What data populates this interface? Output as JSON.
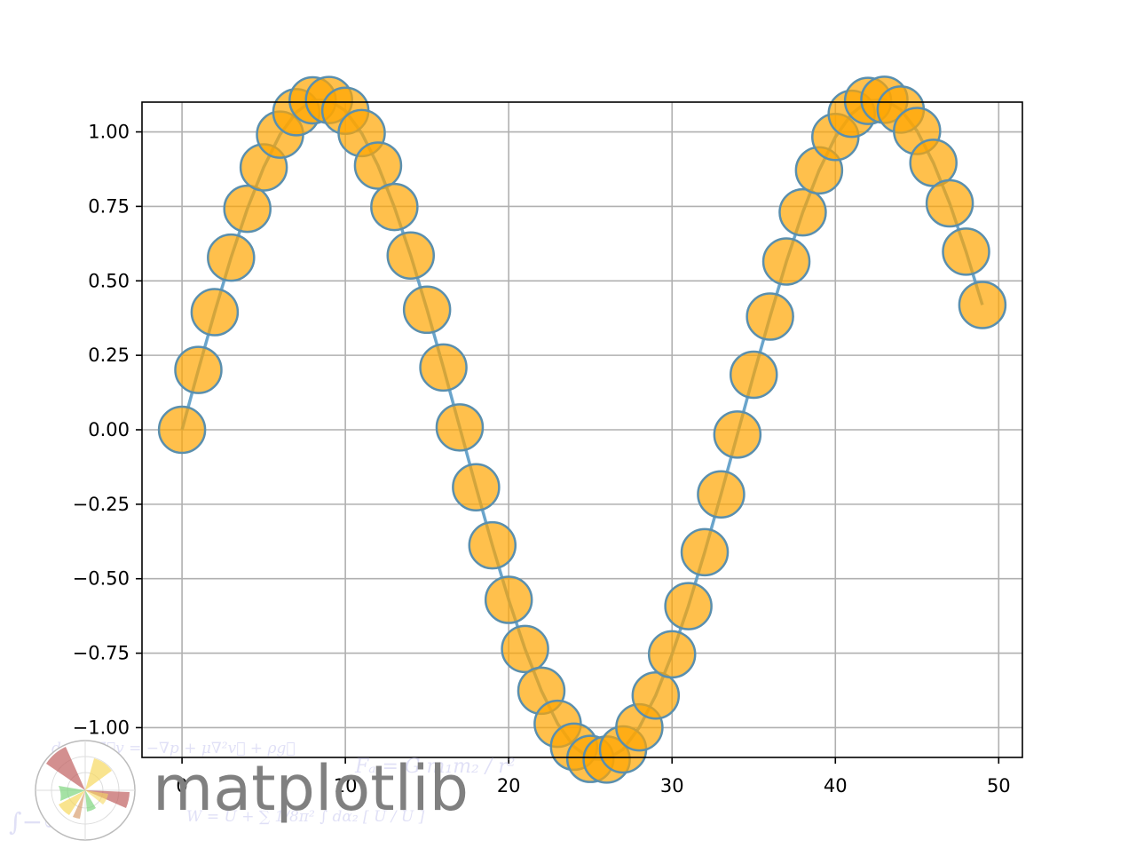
{
  "chart_data": {
    "type": "line",
    "title": "",
    "xlabel": "",
    "ylabel": "",
    "xlim": [
      -2.45,
      51.45
    ],
    "ylim": [
      -1.1,
      1.1
    ],
    "grid": true,
    "x_ticks": [
      0,
      10,
      20,
      30,
      40,
      50
    ],
    "x_tick_labels": [
      "0",
      "10",
      "20",
      "30",
      "40",
      "50"
    ],
    "y_ticks": [
      1.0,
      0.75,
      0.5,
      0.25,
      0.0,
      -0.25,
      -0.5,
      -0.75,
      -1.0
    ],
    "y_tick_labels": [
      "1.00",
      "0.75",
      "0.50",
      "0.25",
      "0.00",
      "−0.25",
      "−0.50",
      "−0.75",
      "−1.00"
    ],
    "series": [
      {
        "kind": "line+markers",
        "line_color": "#5a9bc6",
        "marker_color": "#ffa500",
        "marker_edge_color": "#5a8fae",
        "x": [
          0,
          1,
          2,
          3,
          4,
          5,
          6,
          7,
          8,
          9,
          10,
          11,
          12,
          13,
          14,
          15,
          16,
          17,
          18,
          19,
          20,
          21,
          22,
          23,
          24,
          25,
          26,
          27,
          28,
          29,
          30,
          31,
          32,
          33,
          34,
          35,
          36,
          37,
          38,
          39,
          40,
          41,
          42,
          43,
          44,
          45,
          46,
          47,
          48,
          49
        ],
        "y": [
          0.0,
          0.201,
          0.395,
          0.578,
          0.742,
          0.881,
          0.991,
          1.066,
          1.106,
          1.107,
          1.071,
          0.996,
          0.887,
          0.748,
          0.585,
          0.403,
          0.209,
          0.008,
          -0.193,
          -0.388,
          -0.571,
          -0.736,
          -0.876,
          -0.987,
          -1.064,
          -1.105,
          -1.107,
          -1.073,
          -0.999,
          -0.892,
          -0.754,
          -0.592,
          -0.411,
          -0.217,
          -0.016,
          0.185,
          0.38,
          0.565,
          0.73,
          0.871,
          0.983,
          1.061,
          1.104,
          1.108,
          1.075,
          1.003,
          0.896,
          0.76,
          0.598,
          0.419
        ]
      }
    ]
  },
  "logo": {
    "text": "matplotlib",
    "formula_lines": [
      "dρ  ∂v   ∇⃗v = −∇p + μ∇²v⃗ + ρg⃗",
      "Fₐ = G m₁m₂ / r²",
      "W = U + ∑ 1/8π² ∫ dα₂ [ U / U ]",
      "∫−∞"
    ]
  }
}
